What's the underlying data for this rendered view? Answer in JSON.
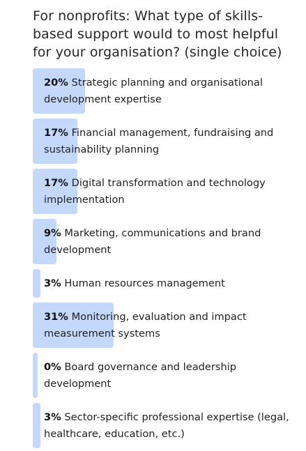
{
  "poll": {
    "question": "For nonprofits: What type of skills-based support would to most helpful for your organisation? (single choice)",
    "options": [
      {
        "percent_label": "20%",
        "percent": 20,
        "text": "Strategic planning and organisational development expertise"
      },
      {
        "percent_label": "17%",
        "percent": 17,
        "text": "Financial management, fundraising and sustainability planning"
      },
      {
        "percent_label": "17%",
        "percent": 17,
        "text": "Digital transformation and technology implementation"
      },
      {
        "percent_label": "9%",
        "percent": 9,
        "text": "Marketing, communications and brand development"
      },
      {
        "percent_label": "3%",
        "percent": 3,
        "text": "Human resources management"
      },
      {
        "percent_label": "31%",
        "percent": 31,
        "text": "Monitoring, evaluation and impact measurement systems"
      },
      {
        "percent_label": "0%",
        "percent": 0,
        "text": "Board governance and leadership development"
      },
      {
        "percent_label": "3%",
        "percent": 3,
        "text": "Sector-specific professional expertise (legal, healthcare, education, etc.)"
      }
    ],
    "colors": {
      "bar": "#c4d8fb",
      "text": "#1f1f24"
    }
  }
}
